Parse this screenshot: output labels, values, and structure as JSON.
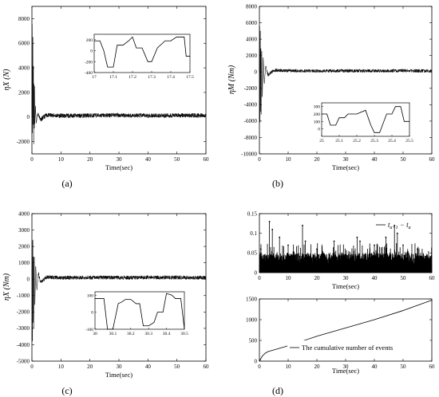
{
  "chart_data": [
    {
      "id": "a",
      "type": "line",
      "caption": "(a)",
      "xlabel": "Time(sec)",
      "ylabel": "ηX (N)",
      "xlim": [
        0,
        60
      ],
      "ylim": [
        -3000,
        9000
      ],
      "xticks": [
        0,
        10,
        20,
        30,
        40,
        50,
        60
      ],
      "yticks": [
        -2000,
        0,
        2000,
        4000,
        6000,
        8000
      ],
      "series": [
        {
          "x": [
            0,
            0.1,
            0.2,
            0.3,
            0.4,
            0.5,
            0.6,
            0.7,
            0.8,
            0.9,
            1.0,
            1.2,
            1.5,
            2,
            3,
            5,
            10,
            20,
            30,
            40,
            50,
            60
          ],
          "y": [
            0,
            8800,
            -2600,
            6500,
            -1800,
            5200,
            -2200,
            3500,
            -1500,
            2500,
            -800,
            900,
            -500,
            300,
            -200,
            150,
            100,
            120,
            150,
            110,
            130,
            120
          ],
          "noise_amplitude": 180
        }
      ],
      "inset": {
        "xlim": [
          17,
          17.5
        ],
        "ylim": [
          -400,
          300
        ],
        "xticks": [
          17,
          17.1,
          17.2,
          17.3,
          17.4,
          17.5
        ],
        "yticks": [
          -400,
          -200,
          0,
          200
        ],
        "x": [
          17.0,
          17.03,
          17.05,
          17.07,
          17.1,
          17.12,
          17.15,
          17.18,
          17.2,
          17.22,
          17.25,
          17.28,
          17.3,
          17.33,
          17.37,
          17.4,
          17.43,
          17.47,
          17.48,
          17.5
        ],
        "y": [
          180,
          180,
          0,
          -300,
          -300,
          100,
          100,
          180,
          250,
          50,
          50,
          -200,
          -200,
          50,
          180,
          180,
          250,
          250,
          -100,
          -100
        ]
      }
    },
    {
      "id": "b",
      "type": "line",
      "caption": "(b)",
      "xlabel": "Time(sec)",
      "ylabel": "ηM (Nm)",
      "xlim": [
        0,
        60
      ],
      "ylim": [
        -10000,
        8000
      ],
      "xticks": [
        0,
        10,
        20,
        30,
        40,
        50,
        60
      ],
      "yticks": [
        -10000,
        -8000,
        -6000,
        -4000,
        -2000,
        0,
        2000,
        4000,
        6000,
        8000
      ],
      "series": [
        {
          "x": [
            0,
            0.1,
            0.2,
            0.3,
            0.4,
            0.5,
            0.6,
            0.8,
            1.0,
            1.3,
            1.7,
            2.2,
            3,
            5,
            10,
            20,
            30,
            40,
            50,
            60
          ],
          "y": [
            0,
            6500,
            -8000,
            5000,
            -6500,
            4200,
            -5200,
            3000,
            -3500,
            2000,
            -1500,
            800,
            -400,
            200,
            150,
            120,
            140,
            130,
            150,
            120
          ],
          "noise_amplitude": 200
        }
      ],
      "inset": {
        "xlim": [
          25,
          25.5
        ],
        "ylim": [
          -100,
          350
        ],
        "xticks": [
          25,
          25.1,
          25.2,
          25.3,
          25.4,
          25.5
        ],
        "yticks": [
          0,
          100,
          200,
          300
        ],
        "x": [
          25.0,
          25.03,
          25.05,
          25.08,
          25.1,
          25.13,
          25.15,
          25.2,
          25.25,
          25.28,
          25.3,
          25.33,
          25.37,
          25.4,
          25.42,
          25.45,
          25.47,
          25.5
        ],
        "y": [
          200,
          200,
          50,
          50,
          150,
          150,
          200,
          200,
          250,
          50,
          -50,
          -50,
          200,
          200,
          300,
          300,
          100,
          100
        ]
      }
    },
    {
      "id": "c",
      "type": "line",
      "caption": "(c)",
      "xlabel": "Time(sec)",
      "ylabel": "ηX (Nm)",
      "xlim": [
        0,
        60
      ],
      "ylim": [
        -5000,
        4000
      ],
      "xticks": [
        0,
        10,
        20,
        30,
        40,
        50,
        60
      ],
      "yticks": [
        -5000,
        -4000,
        -3000,
        -2000,
        -1000,
        0,
        1000,
        2000,
        3000,
        4000
      ],
      "series": [
        {
          "x": [
            0,
            0.1,
            0.2,
            0.3,
            0.4,
            0.5,
            0.6,
            0.8,
            1.0,
            1.3,
            1.7,
            2.2,
            3,
            5,
            10,
            20,
            30,
            40,
            50,
            60
          ],
          "y": [
            0,
            2700,
            -4800,
            2400,
            -3500,
            2100,
            -3000,
            1600,
            -1800,
            900,
            -700,
            400,
            -200,
            120,
            90,
            100,
            90,
            110,
            100,
            90
          ],
          "noise_amplitude": 120
        }
      ],
      "inset": {
        "xlim": [
          30,
          30.5
        ],
        "ylim": [
          -100,
          120
        ],
        "xticks": [
          30,
          30.1,
          30.2,
          30.3,
          30.4,
          30.5
        ],
        "yticks": [
          -100,
          0,
          100
        ],
        "x": [
          30.0,
          30.05,
          30.07,
          30.1,
          30.13,
          30.15,
          30.17,
          30.2,
          30.23,
          30.25,
          30.27,
          30.3,
          30.33,
          30.35,
          30.38,
          30.4,
          30.43,
          30.45,
          30.48,
          30.5
        ],
        "y": [
          80,
          80,
          -100,
          -100,
          50,
          60,
          75,
          75,
          50,
          50,
          -80,
          -80,
          -60,
          0,
          0,
          110,
          100,
          80,
          80,
          -100
        ]
      }
    },
    {
      "id": "d_top",
      "type": "bar",
      "caption": "(d)",
      "xlabel": "Time(sec)",
      "xlim": [
        0,
        60
      ],
      "ylim": [
        0,
        0.15
      ],
      "xticks": [
        0,
        10,
        20,
        30,
        40,
        50,
        60
      ],
      "yticks": [
        0,
        0.05,
        0.1,
        0.15
      ],
      "legend": "t_{a+1} − t_a",
      "legend_position": "top-right",
      "series": [
        {
          "name": "t_{a+1} − t_a",
          "base_level": 0.05,
          "peaks": [
            [
              0.5,
              0.06
            ],
            [
              3.5,
              0.13
            ],
            [
              4.5,
              0.11
            ],
            [
              7,
              0.09
            ],
            [
              10,
              0.07
            ],
            [
              15,
              0.12
            ],
            [
              16,
              0.08
            ],
            [
              20,
              0.06
            ],
            [
              26,
              0.08
            ],
            [
              34,
              0.09
            ],
            [
              35,
              0.08
            ],
            [
              40,
              0.07
            ],
            [
              44,
              0.09
            ],
            [
              47,
              0.12
            ],
            [
              48,
              0.1
            ],
            [
              50,
              0.07
            ],
            [
              55,
              0.06
            ]
          ]
        }
      ]
    },
    {
      "id": "d_bottom",
      "type": "line",
      "xlabel": "Time(sec)",
      "xlim": [
        0,
        60
      ],
      "ylim": [
        0,
        1500
      ],
      "xticks": [
        0,
        10,
        20,
        30,
        40,
        50,
        60
      ],
      "yticks": [
        0,
        500,
        1000,
        1500
      ],
      "legend": "The cumulative number of events",
      "legend_position": "bottom-right",
      "series": [
        {
          "name": "The cumulative number of events",
          "x": [
            0,
            0.5,
            1,
            2,
            3,
            5,
            10,
            20,
            30,
            40,
            50,
            60
          ],
          "y": [
            0,
            60,
            120,
            190,
            230,
            270,
            370,
            600,
            800,
            1000,
            1220,
            1470
          ]
        }
      ]
    }
  ]
}
